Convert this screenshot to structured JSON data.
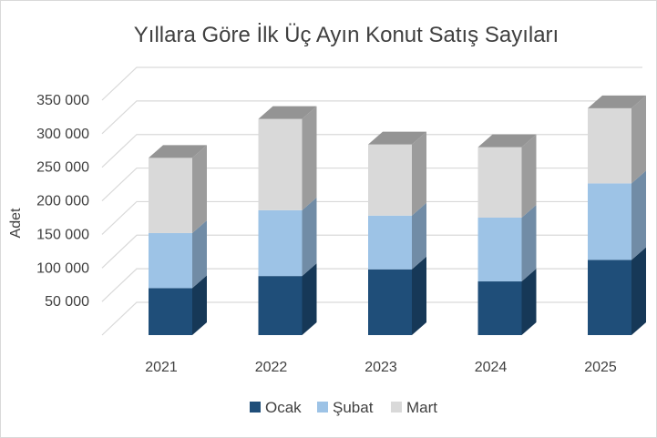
{
  "chart_data": {
    "type": "bar",
    "stacked": true,
    "three_d": true,
    "title": "Yıllara Göre İlk Üç Ayın Konut Satış Sayıları",
    "ylabel": "Adet",
    "xlabel": "",
    "ylim": [
      0,
      350000
    ],
    "yticks": [
      0,
      50000,
      100000,
      150000,
      200000,
      250000,
      300000,
      350000
    ],
    "ytick_labels": [
      "",
      "50 000",
      "100 000",
      "150 000",
      "200 000",
      "250 000",
      "300 000",
      "350 000"
    ],
    "categories": [
      "2021",
      "2022",
      "2023",
      "2024",
      "2025"
    ],
    "series": [
      {
        "name": "Ocak",
        "values": [
          70000,
          88000,
          98000,
          80000,
          112000
        ],
        "color": "#1f4e79"
      },
      {
        "name": "Şubat",
        "values": [
          82000,
          98000,
          80000,
          95000,
          114000
        ],
        "color": "#9dc3e6"
      },
      {
        "name": "Mart",
        "values": [
          112000,
          136000,
          106000,
          105000,
          112000
        ],
        "color": "#d9d9d9"
      }
    ],
    "grid": true,
    "legend_position": "bottom"
  }
}
